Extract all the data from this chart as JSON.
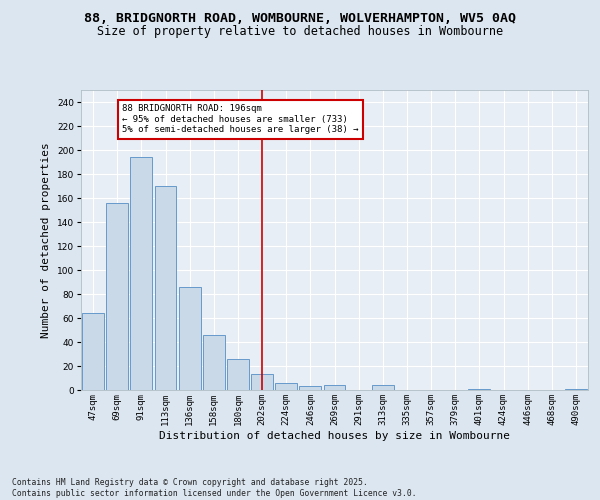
{
  "title1": "88, BRIDGNORTH ROAD, WOMBOURNE, WOLVERHAMPTON, WV5 0AQ",
  "title2": "Size of property relative to detached houses in Wombourne",
  "xlabel": "Distribution of detached houses by size in Wombourne",
  "ylabel": "Number of detached properties",
  "categories": [
    "47sqm",
    "69sqm",
    "91sqm",
    "113sqm",
    "136sqm",
    "158sqm",
    "180sqm",
    "202sqm",
    "224sqm",
    "246sqm",
    "269sqm",
    "291sqm",
    "313sqm",
    "335sqm",
    "357sqm",
    "379sqm",
    "401sqm",
    "424sqm",
    "446sqm",
    "468sqm",
    "490sqm"
  ],
  "values": [
    64,
    156,
    194,
    170,
    86,
    46,
    26,
    13,
    6,
    3,
    4,
    0,
    4,
    0,
    0,
    0,
    1,
    0,
    0,
    0,
    1
  ],
  "bar_color": "#c9d9e8",
  "bar_edge_color": "#6699cc",
  "vline_x_index": 7,
  "vline_color": "#cc0000",
  "annotation_text": "88 BRIDGNORTH ROAD: 196sqm\n← 95% of detached houses are smaller (733)\n5% of semi-detached houses are larger (38) →",
  "annotation_box_color": "#ffffff",
  "annotation_border_color": "#cc0000",
  "ylim": [
    0,
    250
  ],
  "yticks": [
    0,
    20,
    40,
    60,
    80,
    100,
    120,
    140,
    160,
    180,
    200,
    220,
    240
  ],
  "bg_color": "#dce6f0",
  "plot_bg_color": "#e8eef5",
  "footer": "Contains HM Land Registry data © Crown copyright and database right 2025.\nContains public sector information licensed under the Open Government Licence v3.0.",
  "title_fontsize": 9.5,
  "subtitle_fontsize": 8.5,
  "tick_fontsize": 6.5,
  "label_fontsize": 8,
  "footer_fontsize": 5.8
}
